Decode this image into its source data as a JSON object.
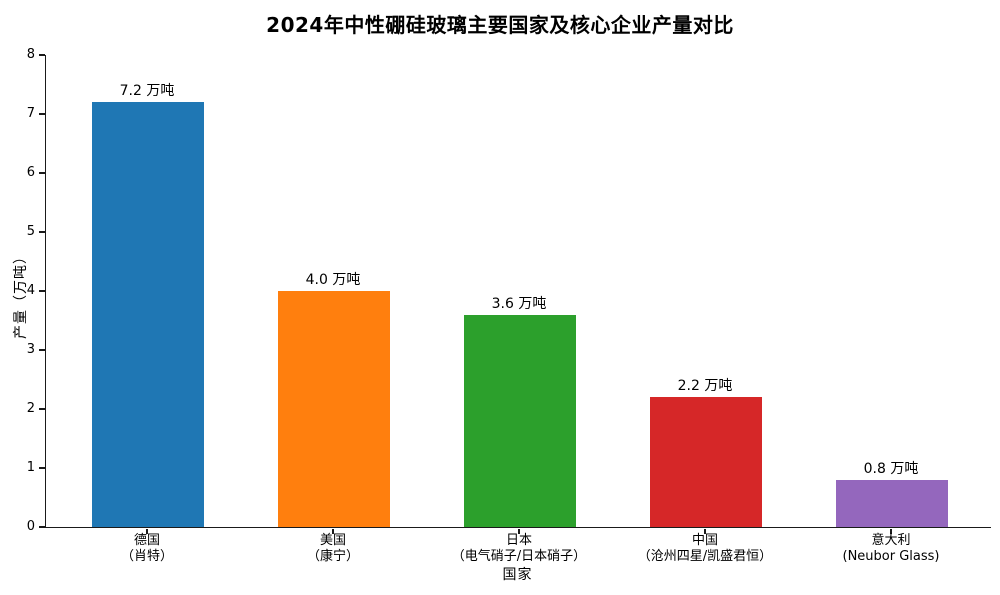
{
  "chart_data": {
    "type": "bar",
    "title": "2024年中性硼硅玻璃主要国家及核心企业产量对比",
    "xlabel": "国家",
    "ylabel": "产量（万吨）",
    "unit": "万吨",
    "ylim": [
      0,
      8
    ],
    "yticks": [
      0,
      1,
      2,
      3,
      4,
      5,
      6,
      7,
      8
    ],
    "grid": false,
    "legend": null,
    "categories": [
      "德国",
      "美国",
      "日本",
      "中国",
      "意大利"
    ],
    "bars": [
      {
        "country": "德国",
        "company": "（肖特）",
        "value": 7.2,
        "value_label": "7.2 万吨",
        "color": "#1f77b4"
      },
      {
        "country": "美国",
        "company": "（康宁）",
        "value": 4.0,
        "value_label": "4.0 万吨",
        "color": "#ff7f0e"
      },
      {
        "country": "日本",
        "company": "（电气硝子/日本硝子）",
        "value": 3.6,
        "value_label": "3.6 万吨",
        "color": "#2ca02c"
      },
      {
        "country": "中国",
        "company": "（沧州四星/凯盛君恒）",
        "value": 2.2,
        "value_label": "2.2 万吨",
        "color": "#d62728"
      },
      {
        "country": "意大利",
        "company": "(Neubor Glass)",
        "value": 0.8,
        "value_label": "0.8 万吨",
        "color": "#9467bd"
      }
    ],
    "axis_color": "#1a1a1a",
    "background_color": "#ffffff"
  }
}
